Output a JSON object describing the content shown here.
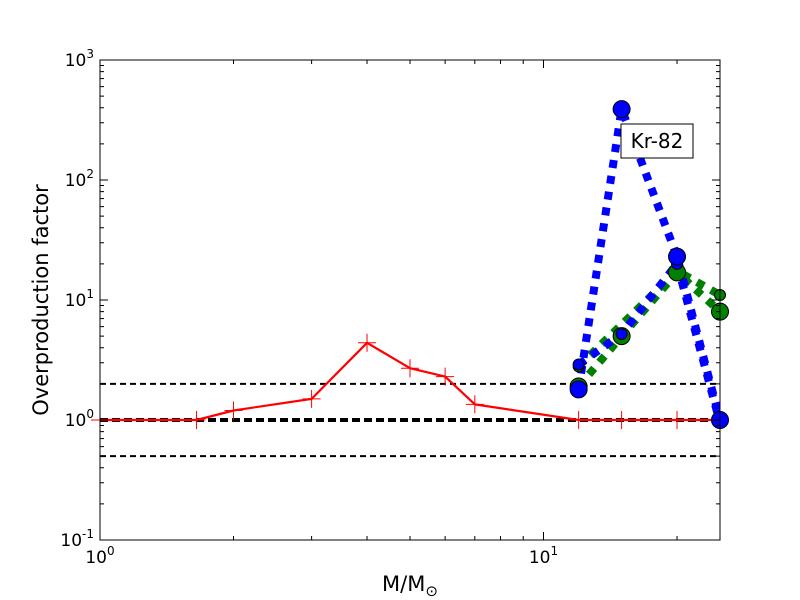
{
  "chart_data": {
    "type": "line",
    "xscale": "log",
    "yscale": "log",
    "xlim": [
      1,
      25
    ],
    "ylim": [
      0.1,
      1000
    ],
    "xlabel_main": "M/M",
    "xlabel_sub": "⊙",
    "ylabel": "Overproduction factor",
    "x_ticks": [
      {
        "value": 1,
        "base": "10",
        "exp": "0"
      },
      {
        "value": 10,
        "base": "10",
        "exp": "1"
      }
    ],
    "y_ticks": [
      {
        "value": 0.1,
        "base": "10",
        "exp": "-1"
      },
      {
        "value": 1,
        "base": "10",
        "exp": "0"
      },
      {
        "value": 10,
        "base": "10",
        "exp": "1"
      },
      {
        "value": 100,
        "base": "10",
        "exp": "2"
      },
      {
        "value": 1000,
        "base": "10",
        "exp": "3"
      }
    ],
    "reference_lines": [
      {
        "y": 2,
        "style": "dashed",
        "color": "#000000",
        "width": 2
      },
      {
        "y": 1,
        "style": "dashed",
        "color": "#000000",
        "width": 4
      },
      {
        "y": 0.5,
        "style": "dashed",
        "color": "#000000",
        "width": 2
      }
    ],
    "series": [
      {
        "style": "solid",
        "color": "#ff0000",
        "marker": "plus",
        "x": [
          1.0,
          1.65,
          2.0,
          3.0,
          4.0,
          5.0,
          6.0,
          7.0,
          12.0,
          15.0,
          20.0,
          25.0
        ],
        "y": [
          1.0,
          1.0,
          1.2,
          1.5,
          4.4,
          2.7,
          2.3,
          1.35,
          1.0,
          1.0,
          1.0,
          1.0
        ]
      },
      {
        "style": "dotted",
        "color": "#0000ff",
        "marker": "circle",
        "marker_size": "large",
        "x": [
          12.0,
          15.0,
          20.0,
          25.0
        ],
        "y": [
          1.8,
          390,
          23,
          1.0
        ]
      },
      {
        "style": "dotted",
        "color": "#0000ff",
        "marker": "circle",
        "marker_size": "small",
        "x": [
          12.0,
          15.0,
          20.0,
          25.0
        ],
        "y": [
          2.9,
          5.2,
          20,
          0.95
        ]
      },
      {
        "style": "dotted",
        "color": "#008000",
        "marker": "circle",
        "marker_size": "large",
        "x": [
          12.0,
          15.0,
          20.0,
          25.0
        ],
        "y": [
          1.9,
          5.0,
          17,
          8.0
        ]
      },
      {
        "style": "dotted",
        "color": "#008000",
        "marker": "circle",
        "marker_size": "small",
        "x": [
          12.0,
          20.0,
          25.0
        ],
        "y": [
          2.8,
          17.5,
          11
        ]
      }
    ],
    "annotation": {
      "text": "Kr-82",
      "x": 16.6,
      "y": 190
    }
  }
}
